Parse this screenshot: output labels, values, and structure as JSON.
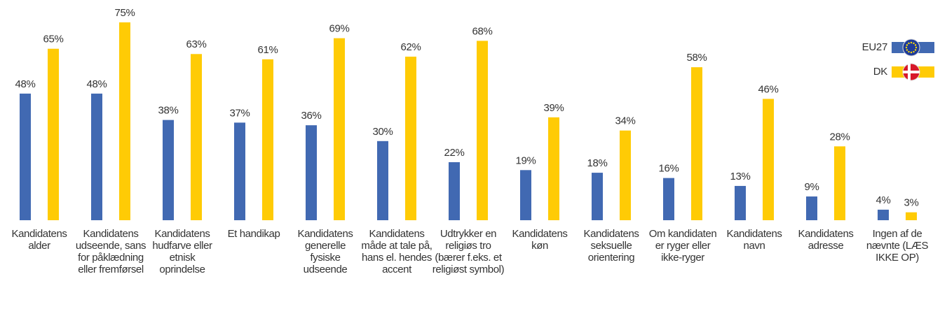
{
  "chart_data": {
    "type": "bar",
    "categories": [
      "Kandidatens alder",
      "Kandidatens udseende, sans for påklædning eller fremførsel",
      "Kandidatens hudfarve eller etnisk oprindelse",
      "Et handikap",
      "Kandidatens generelle fysiske udseende",
      "Kandidatens måde at tale på, hans el. hendes accent",
      "Udtrykker en religiøs tro (bærer f.eks. et religiøst symbol)",
      "Kandidatens køn",
      "Kandidatens seksuelle orientering",
      "Om kandidaten er ryger eller ikke-ryger",
      "Kandidatens navn",
      "Kandidatens adresse",
      "Ingen af de nævnte (LÆS IKKE OP)"
    ],
    "series": [
      {
        "name": "EU27",
        "color": "#4169b2",
        "values": [
          48,
          48,
          38,
          37,
          36,
          30,
          22,
          19,
          18,
          16,
          13,
          9,
          4
        ],
        "value_labels": [
          "48%",
          "48%",
          "38%",
          "37%",
          "36%",
          "30%",
          "22%",
          "19%",
          "18%",
          "16%",
          "13%",
          "9%",
          "4%"
        ]
      },
      {
        "name": "DK",
        "color": "#ffcb05",
        "values": [
          65,
          75,
          63,
          61,
          69,
          62,
          68,
          39,
          34,
          58,
          46,
          28,
          3
        ],
        "value_labels": [
          "65%",
          "75%",
          "63%",
          "61%",
          "69%",
          "62%",
          "68%",
          "39%",
          "34%",
          "58%",
          "46%",
          "28%",
          "3%"
        ]
      }
    ]
  }
}
